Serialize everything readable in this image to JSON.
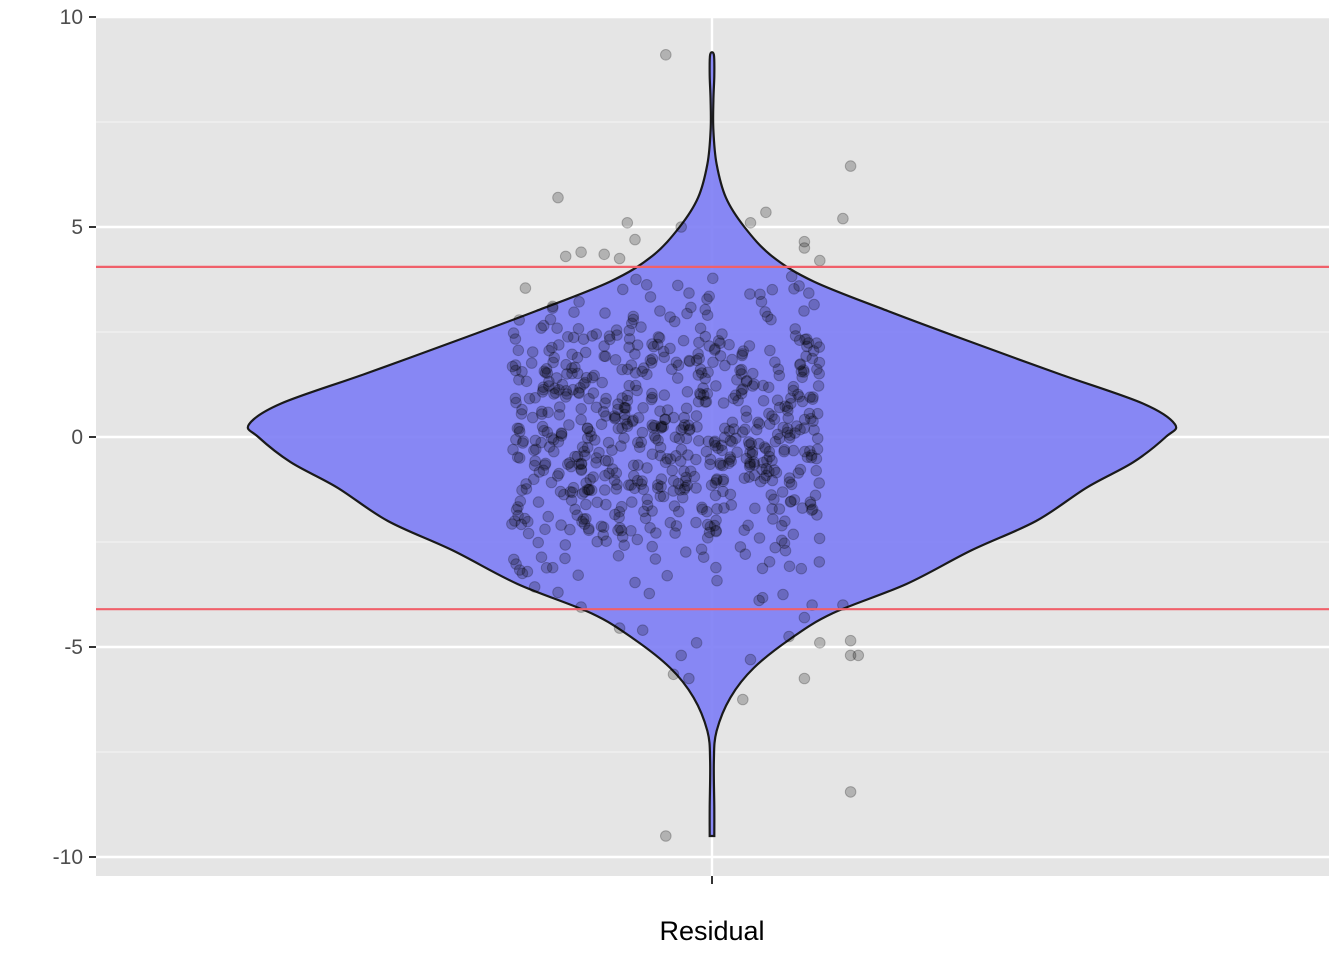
{
  "chart_data": {
    "type": "violin",
    "categories": [
      "Residual"
    ],
    "ylim": [
      -10.4,
      10
    ],
    "yticks": [
      -10,
      -5,
      0,
      5,
      10
    ],
    "ytick_labels": [
      "-10",
      "-5",
      "0",
      "5",
      "10"
    ],
    "grid": true,
    "reference_lines": [
      {
        "y": 4.05,
        "color": "#f0606a"
      },
      {
        "y": -4.1,
        "color": "#f0606a"
      }
    ],
    "violin": {
      "fill": "#7f7ff5",
      "outline": "#1a1a1a",
      "y_range": [
        -9.5,
        9.1
      ],
      "density_profile": [
        {
          "y": -9.5,
          "w": 0.005
        },
        {
          "y": -8.8,
          "w": 0.005
        },
        {
          "y": -7.7,
          "w": 0.004
        },
        {
          "y": -7.0,
          "w": 0.01
        },
        {
          "y": -6.2,
          "w": 0.04
        },
        {
          "y": -5.5,
          "w": 0.09
        },
        {
          "y": -4.8,
          "w": 0.17
        },
        {
          "y": -4.2,
          "w": 0.26
        },
        {
          "y": -3.5,
          "w": 0.42
        },
        {
          "y": -2.7,
          "w": 0.56
        },
        {
          "y": -2.0,
          "w": 0.7
        },
        {
          "y": -1.2,
          "w": 0.81
        },
        {
          "y": -0.6,
          "w": 0.91
        },
        {
          "y": 0.0,
          "w": 0.98
        },
        {
          "y": 0.3,
          "w": 1.0
        },
        {
          "y": 0.8,
          "w": 0.93
        },
        {
          "y": 1.5,
          "w": 0.75
        },
        {
          "y": 2.3,
          "w": 0.55
        },
        {
          "y": 3.0,
          "w": 0.38
        },
        {
          "y": 3.7,
          "w": 0.22
        },
        {
          "y": 4.3,
          "w": 0.13
        },
        {
          "y": 5.0,
          "w": 0.07
        },
        {
          "y": 5.7,
          "w": 0.03
        },
        {
          "y": 6.5,
          "w": 0.01
        },
        {
          "y": 7.3,
          "w": 0.003
        },
        {
          "y": 8.0,
          "w": 0.003
        },
        {
          "y": 8.6,
          "w": 0.005
        },
        {
          "y": 9.1,
          "w": 0.004
        }
      ]
    },
    "points": {
      "color": "#000000",
      "opacity": 0.22,
      "n_bulk": 700,
      "jitter_half_width": 0.2,
      "x_offset": -0.06,
      "outliers": [
        {
          "x": -0.06,
          "y": 9.1
        },
        {
          "x": 0.18,
          "y": 6.45
        },
        {
          "x": -0.2,
          "y": 5.7
        },
        {
          "x": 0.07,
          "y": 5.35
        },
        {
          "x": 0.17,
          "y": 5.2
        },
        {
          "x": -0.11,
          "y": 5.1
        },
        {
          "x": 0.05,
          "y": 5.1
        },
        {
          "x": -0.04,
          "y": 5.0
        },
        {
          "x": 0.12,
          "y": 4.65
        },
        {
          "x": -0.1,
          "y": 4.7
        },
        {
          "x": 0.12,
          "y": 4.5
        },
        {
          "x": -0.17,
          "y": 4.4
        },
        {
          "x": -0.14,
          "y": 4.35
        },
        {
          "x": -0.19,
          "y": 4.3
        },
        {
          "x": 0.14,
          "y": 4.2
        },
        {
          "x": -0.12,
          "y": 4.25
        },
        {
          "x": -0.2,
          "y": -3.7
        },
        {
          "x": 0.13,
          "y": -4.0
        },
        {
          "x": -0.17,
          "y": -4.05
        },
        {
          "x": 0.17,
          "y": -4.0
        },
        {
          "x": 0.12,
          "y": -4.3
        },
        {
          "x": -0.12,
          "y": -4.55
        },
        {
          "x": -0.09,
          "y": -4.6
        },
        {
          "x": 0.1,
          "y": -4.75
        },
        {
          "x": 0.14,
          "y": -4.9
        },
        {
          "x": 0.18,
          "y": -4.85
        },
        {
          "x": -0.02,
          "y": -4.9
        },
        {
          "x": 0.18,
          "y": -5.2
        },
        {
          "x": 0.19,
          "y": -5.2
        },
        {
          "x": -0.04,
          "y": -5.2
        },
        {
          "x": 0.05,
          "y": -5.3
        },
        {
          "x": -0.05,
          "y": -5.65
        },
        {
          "x": -0.03,
          "y": -5.75
        },
        {
          "x": 0.12,
          "y": -5.75
        },
        {
          "x": 0.04,
          "y": -6.25
        },
        {
          "x": 0.18,
          "y": -8.45
        },
        {
          "x": -0.06,
          "y": -9.5
        }
      ]
    },
    "xlabel": "Residual"
  }
}
